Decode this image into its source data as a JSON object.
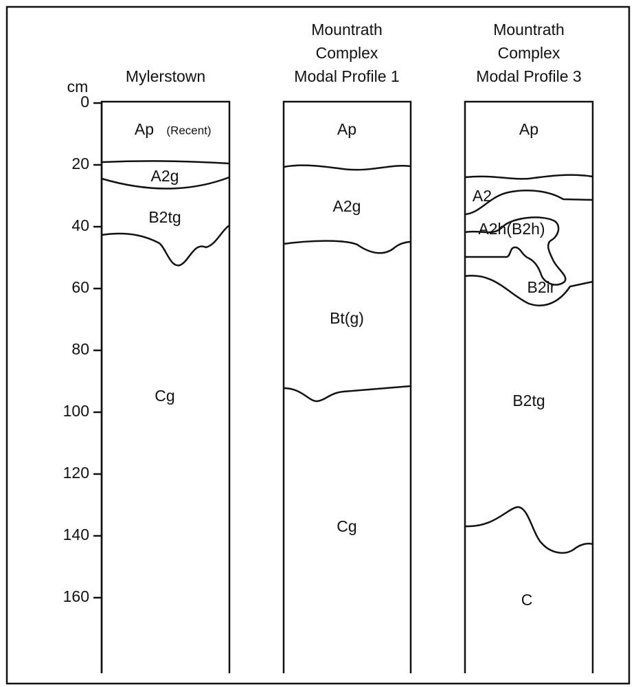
{
  "axis": {
    "unit": "cm",
    "ticks": [
      "0",
      "20",
      "40",
      "60",
      "80",
      "100",
      "120",
      "140",
      "160"
    ]
  },
  "profiles": [
    {
      "title_lines": [
        "Mylerstown"
      ],
      "horizons": [
        "Ap",
        "A2g",
        "B2tg",
        "Cg"
      ],
      "note": "(Recent)"
    },
    {
      "title_lines": [
        "Mountrath",
        "Complex",
        "Modal Profile 1"
      ],
      "horizons": [
        "Ap",
        "A2g",
        "Bt(g)",
        "Cg"
      ]
    },
    {
      "title_lines": [
        "Mountrath",
        "Complex",
        "Modal Profile 3"
      ],
      "horizons": [
        "Ap",
        "A2",
        "A2h(B2h)",
        "B2ir",
        "B2tg",
        "C"
      ]
    }
  ]
}
